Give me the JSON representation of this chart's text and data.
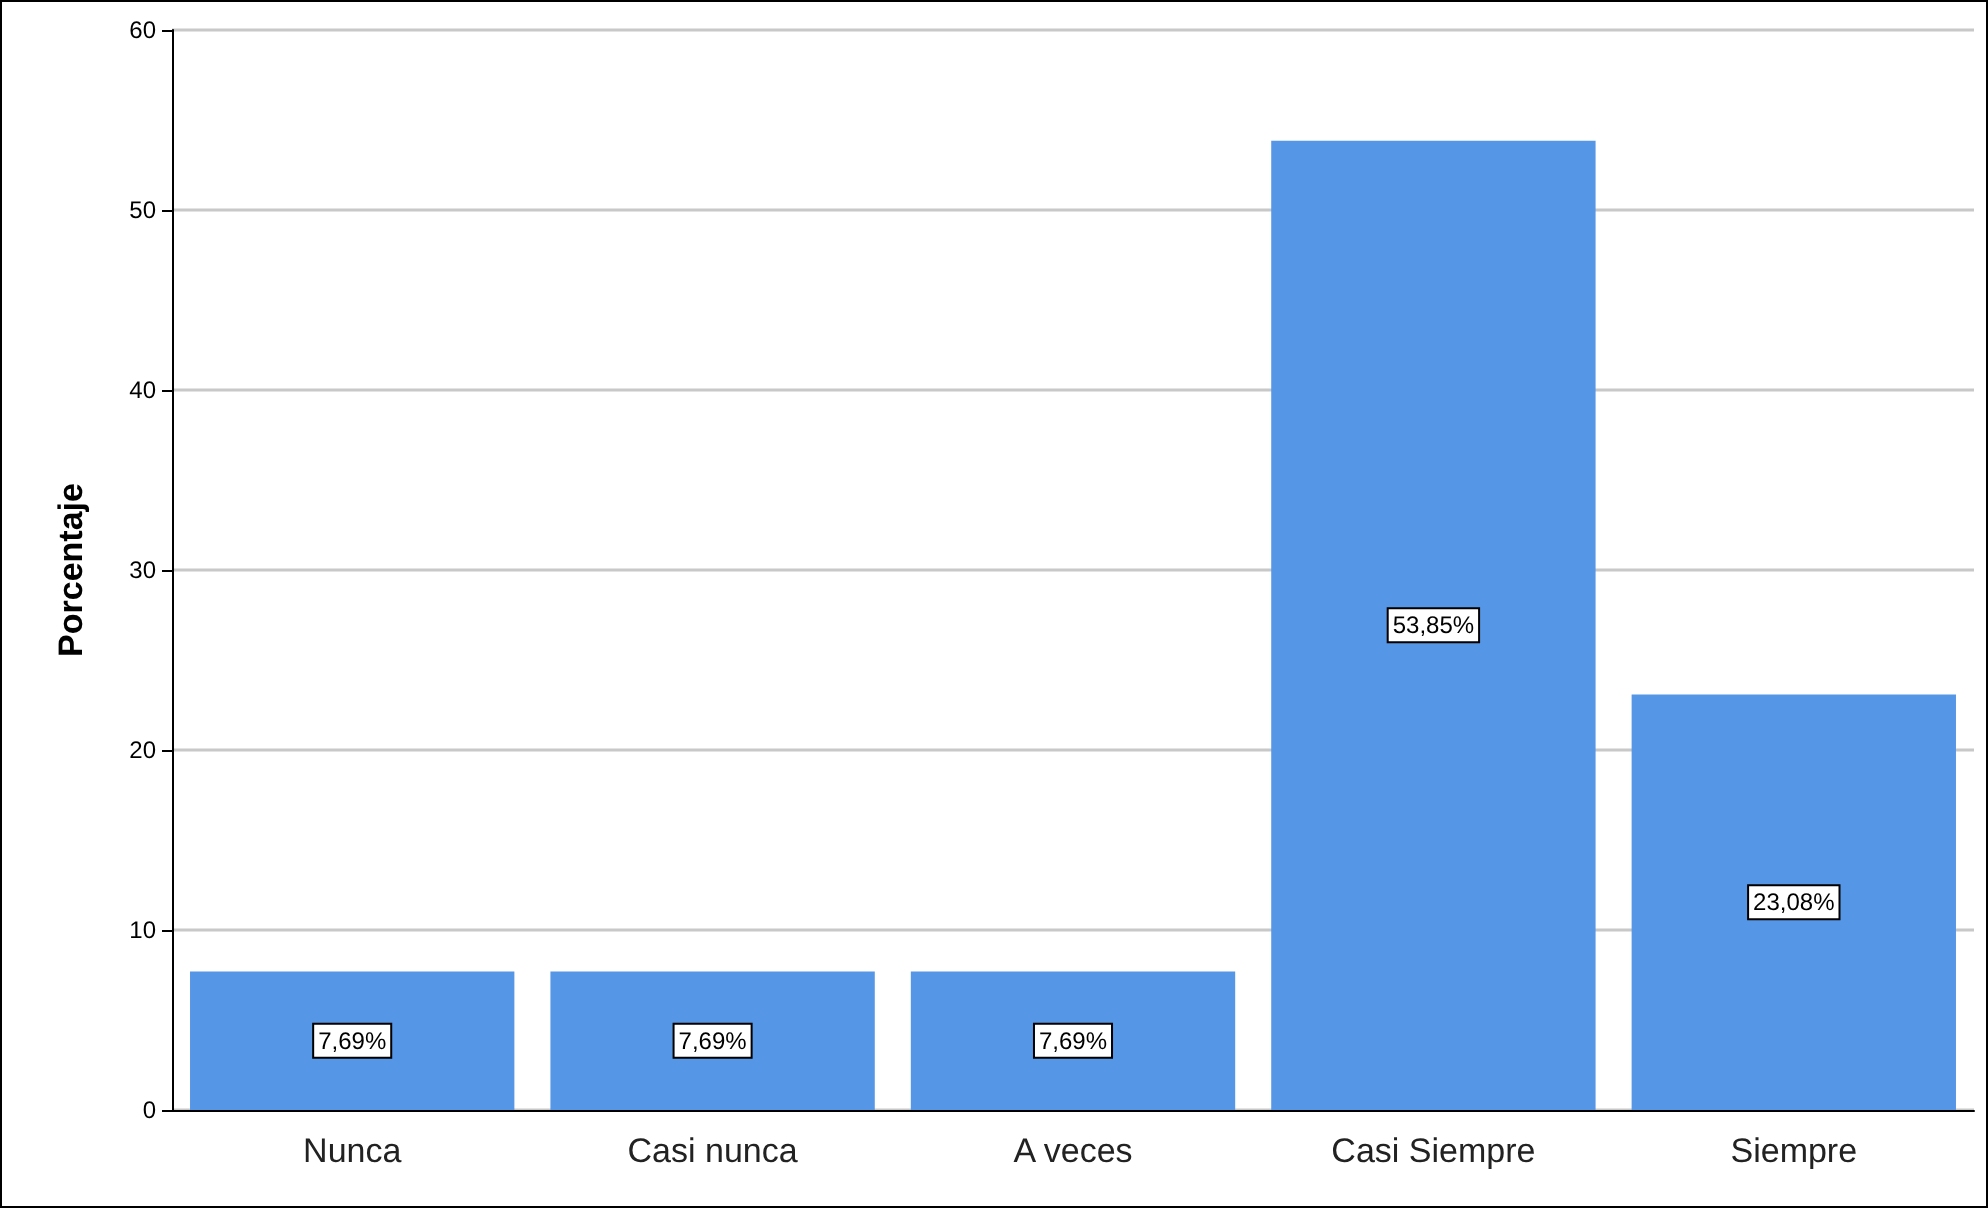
{
  "chart_data": {
    "type": "bar",
    "ylabel": "Porcentaje",
    "categories": [
      "Nunca",
      "Casi nunca",
      "A veces",
      "Casi Siempre",
      "Siempre"
    ],
    "values": [
      7.69,
      7.69,
      7.69,
      53.85,
      23.08
    ],
    "value_labels": [
      "7,69%",
      "7,69%",
      "7,69%",
      "53,85%",
      "23,08%"
    ],
    "color": "#5596e6",
    "ylim": [
      0,
      60
    ],
    "yticks": [
      0,
      10,
      20,
      30,
      40,
      50,
      60
    ],
    "grid": "y"
  }
}
